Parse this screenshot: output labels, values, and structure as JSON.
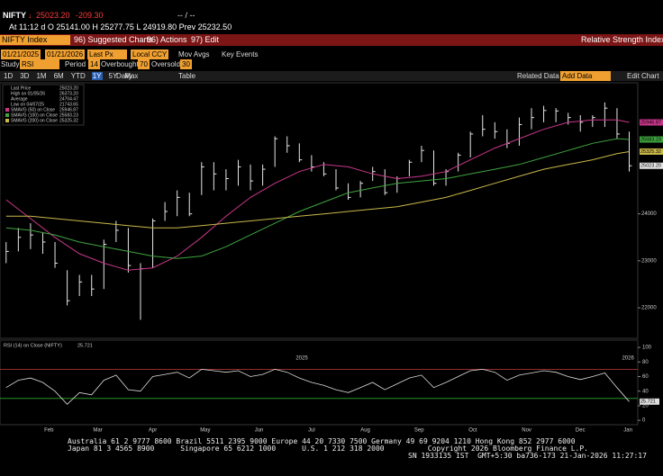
{
  "header": {
    "ticker": "NIFTY",
    "price": "25023.20",
    "change": "-209.30",
    "bid_ask": "-- / --",
    "quote": "At 11:12 d O 25141.00 H 25277.75 L 24919.80 Prev 25232.50"
  },
  "menu": {
    "security": "NIFTY Index",
    "items": [
      "96) Suggested Charts",
      "96) Actions",
      "97) Edit"
    ],
    "title": "Relative Strength Index"
  },
  "controls": {
    "start": "01/21/2025",
    "end": "01/21/2026",
    "field": "Last Px",
    "currency": "Local CCY",
    "mov_avgs": "Mov Avgs",
    "key_events": "Key Events",
    "study_label": "Study",
    "study": "RSI",
    "period_label": "Period",
    "period": "14",
    "overbought_label": "Overbought",
    "oversold_label": "Oversold"
  },
  "toolbar": {
    "ranges": [
      "1D",
      "3D",
      "1M",
      "6M",
      "YTD",
      "1Y",
      "5Y",
      "Max"
    ],
    "active_range": 5,
    "frequency": "Daily",
    "table": "Table",
    "related": "Related Data",
    "add_data": "Add Data",
    "edit_chart": "Edit Chart"
  },
  "chart_data": [
    {
      "type": "ohlc",
      "x": [
        0,
        1,
        2,
        3,
        4,
        5,
        6,
        7,
        8,
        9,
        10,
        11,
        12,
        13,
        14,
        15,
        16,
        17,
        18,
        19,
        20,
        21,
        22,
        23,
        24,
        25,
        26,
        27,
        28,
        29,
        30,
        31,
        32,
        33,
        34,
        35,
        36,
        37,
        38,
        39,
        40,
        41,
        42,
        43,
        44,
        45,
        46,
        47,
        48,
        49,
        50,
        51
      ],
      "xlim": [
        -0.5,
        51.7
      ],
      "ylim": [
        21350,
        26790
      ],
      "yticks": [
        22000,
        23000,
        24000
      ],
      "stats": [
        {
          "label": "Last Price",
          "text": "25023.20"
        },
        {
          "label": "High on 01/05/26",
          "text": "26373.20"
        },
        {
          "label": "Average",
          "text": "24704.47"
        },
        {
          "label": "Low on 04/07/25",
          "text": "21743.65"
        }
      ],
      "series": [
        {
          "name": "Last Price",
          "color": "#e6e6e6",
          "high": [
            23400,
            23700,
            23800,
            23600,
            23400,
            22800,
            22700,
            22700,
            23450,
            23850,
            23700,
            22950,
            23900,
            24250,
            24500,
            24450,
            25100,
            25100,
            24950,
            25150,
            25050,
            25050,
            25650,
            25650,
            25500,
            25250,
            25100,
            24950,
            24650,
            24700,
            25000,
            24950,
            24800,
            25150,
            25450,
            25350,
            24950,
            25300,
            25750,
            26100,
            25950,
            25800,
            26050,
            26250,
            26300,
            26250,
            26150,
            26100,
            26100,
            26373.2,
            26250,
            25750
          ],
          "low": [
            22950,
            23200,
            23250,
            23150,
            22850,
            22050,
            22250,
            22250,
            22400,
            23400,
            22750,
            21743.65,
            22850,
            23850,
            23950,
            23950,
            24400,
            24500,
            24500,
            24600,
            24500,
            24600,
            25000,
            25300,
            25100,
            24900,
            24800,
            24500,
            24300,
            24350,
            24700,
            24400,
            24450,
            24800,
            25100,
            24600,
            24600,
            24900,
            25200,
            25650,
            25600,
            25400,
            25450,
            25800,
            25950,
            25950,
            25900,
            25750,
            25850,
            25850,
            25600,
            24900
          ],
          "values": [
            23200,
            23500,
            23550,
            23400,
            22950,
            22150,
            22550,
            22400,
            23350,
            23650,
            22900,
            22830,
            23850,
            24050,
            24350,
            24000,
            25000,
            24850,
            24750,
            25000,
            24700,
            24950,
            25600,
            25450,
            25150,
            25000,
            24850,
            24550,
            24350,
            24650,
            24900,
            24450,
            24750,
            25100,
            25350,
            24650,
            24900,
            25250,
            25700,
            25800,
            25750,
            25500,
            25900,
            26050,
            26200,
            26190,
            26050,
            25950,
            26050,
            26250,
            25700,
            25023.2
          ]
        },
        {
          "name": "SMAVG (50) on Close",
          "color": "#c8378a",
          "x": [
            0,
            2,
            4,
            6,
            8,
            10,
            12,
            14,
            16,
            18,
            20,
            22,
            24,
            26,
            28,
            30,
            32,
            34,
            36,
            38,
            40,
            42,
            44,
            46,
            48,
            50,
            51
          ],
          "values": [
            24300,
            23900,
            23500,
            23150,
            22950,
            22800,
            22850,
            23100,
            23500,
            23950,
            24350,
            24650,
            24900,
            25050,
            25000,
            24850,
            24750,
            24800,
            24900,
            25150,
            25400,
            25600,
            25800,
            25950,
            26000,
            26000,
            25946.87
          ]
        },
        {
          "name": "SMAVG (100) on Close",
          "color": "#3fa33f",
          "x": [
            0,
            2,
            4,
            6,
            8,
            10,
            12,
            14,
            16,
            18,
            20,
            22,
            24,
            26,
            28,
            30,
            32,
            34,
            36,
            38,
            40,
            42,
            44,
            46,
            48,
            50,
            51
          ],
          "values": [
            23700,
            23650,
            23550,
            23400,
            23300,
            23200,
            23100,
            23050,
            23100,
            23300,
            23550,
            23800,
            24050,
            24250,
            24450,
            24550,
            24650,
            24700,
            24750,
            24850,
            24950,
            25050,
            25200,
            25350,
            25500,
            25600,
            25583.23
          ]
        },
        {
          "name": "SMAVG (200) on Close",
          "color": "#c9b84a",
          "x": [
            0,
            2,
            4,
            6,
            8,
            10,
            12,
            14,
            16,
            18,
            20,
            22,
            24,
            26,
            28,
            30,
            32,
            34,
            36,
            38,
            40,
            42,
            44,
            46,
            48,
            50,
            51
          ],
          "values": [
            23950,
            23950,
            23900,
            23850,
            23800,
            23750,
            23700,
            23700,
            23750,
            23800,
            23850,
            23900,
            23950,
            24000,
            24050,
            24100,
            24150,
            24250,
            24350,
            24500,
            24650,
            24800,
            24950,
            25050,
            25150,
            25280,
            25325.32
          ]
        }
      ],
      "price_tags": [
        {
          "value": 25946.87,
          "label": "25946.87",
          "color": "#c8378a"
        },
        {
          "value": 25583.23,
          "label": "25583.23",
          "color": "#3fa33f"
        },
        {
          "value": 25325.32,
          "label": "25325.32",
          "color": "#c9b84a"
        },
        {
          "value": 25023.2,
          "label": "25023.20",
          "color": "#e6e6e6"
        }
      ]
    },
    {
      "type": "line",
      "title": "RSI (14) on Close (NIFTY)",
      "color": "#dcdcdc",
      "x": [
        0,
        1,
        2,
        3,
        4,
        5,
        6,
        7,
        8,
        9,
        10,
        11,
        12,
        13,
        14,
        15,
        16,
        17,
        18,
        19,
        20,
        21,
        22,
        23,
        24,
        25,
        26,
        27,
        28,
        29,
        30,
        31,
        32,
        33,
        34,
        35,
        36,
        37,
        38,
        39,
        40,
        41,
        42,
        43,
        44,
        45,
        46,
        47,
        48,
        49,
        50,
        51
      ],
      "values": [
        45,
        55,
        58,
        52,
        40,
        22,
        38,
        35,
        55,
        62,
        42,
        40,
        60,
        63,
        66,
        58,
        70,
        68,
        66,
        68,
        60,
        63,
        70,
        66,
        58,
        52,
        48,
        42,
        38,
        45,
        52,
        42,
        50,
        58,
        62,
        45,
        52,
        60,
        68,
        70,
        66,
        55,
        62,
        65,
        68,
        66,
        60,
        56,
        60,
        65,
        45,
        25.721
      ],
      "xlim": [
        -0.5,
        51.7
      ],
      "ylim": [
        -6,
        110
      ],
      "yticks": [
        0,
        20,
        40,
        60,
        80,
        100
      ],
      "overbought": 70,
      "oversold": 30,
      "xticks": [
        {
          "value": 3.5,
          "label": "Feb"
        },
        {
          "value": 7.5,
          "label": "Mar"
        },
        {
          "value": 12,
          "label": "Apr"
        },
        {
          "value": 16.3,
          "label": "May"
        },
        {
          "value": 20.7,
          "label": "Jun"
        },
        {
          "value": 25,
          "label": "Jul"
        },
        {
          "value": 29.4,
          "label": "Aug"
        },
        {
          "value": 33.8,
          "label": "Sep"
        },
        {
          "value": 38.2,
          "label": "Oct"
        },
        {
          "value": 42.6,
          "label": "Nov"
        },
        {
          "value": 47,
          "label": "Dec"
        },
        {
          "value": 50.9,
          "label": "Jan"
        }
      ],
      "year_ticks": [
        {
          "value": 24.2,
          "label": "2025"
        },
        {
          "value": 50.9,
          "label": "2026"
        }
      ]
    }
  ],
  "footer": [
    "Australia 61 2 9777 8600 Brazil 5511 2395 9000 Europe 44 20 7330 7500 Germany 49 69 9204 1210 Hong Kong 852 2977 6000",
    "Japan 81 3 4565 8900      Singapore 65 6212 1000      U.S. 1 212 318 2000          Copyright 2026 Bloomberg Finance L.P.",
    "SN 1933135 IST  GMT+5:30 ba736-173 21-Jan-2026 11:27:17"
  ]
}
